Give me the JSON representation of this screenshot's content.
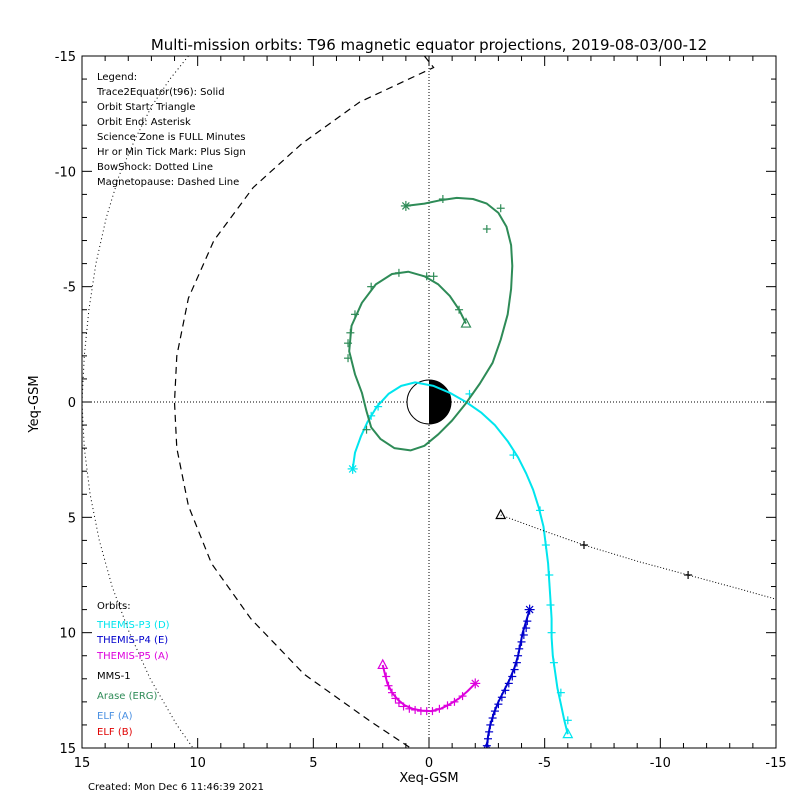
{
  "chart_data": {
    "type": "line",
    "title": "Multi-mission orbits: T96 magnetic equator projections, 2019-08-03/00-12",
    "xlabel": "Xeq-GSM",
    "ylabel": "Yeq-GSM",
    "xlim": [
      15,
      -15
    ],
    "ylim": [
      -15,
      15
    ],
    "x_ticks": [
      15,
      10,
      5,
      0,
      -5,
      -10,
      -15
    ],
    "y_ticks": [
      -15,
      -10,
      -5,
      0,
      5,
      10,
      15
    ],
    "grid": false,
    "crosshair_lines": "dotted at x=0 and y=0",
    "legend_lines": [
      "Legend:",
      "Trace2Equator(t96): Solid",
      "Orbit Start: Triangle",
      "Orbit End: Asterisk",
      "Science Zone is FULL Minutes",
      "Hr or Min Tick Mark: Plus Sign",
      "BowShock: Dotted Line",
      "Magnetopause: Dashed Line"
    ],
    "orbits_title": "Orbits:",
    "series": [
      {
        "name": "THEMIS-P3 (D)",
        "color": "#00e5ee",
        "start_marker": [
          -6.0,
          14.4
        ],
        "end_marker": [
          3.3,
          2.9
        ],
        "points": [
          [
            -6.0,
            14.4
          ],
          [
            -5.85,
            13.8
          ],
          [
            -5.7,
            13.1
          ],
          [
            -5.55,
            12.4
          ],
          [
            -5.45,
            11.7
          ],
          [
            -5.35,
            11.0
          ],
          [
            -5.3,
            10.2
          ],
          [
            -5.3,
            9.4
          ],
          [
            -5.25,
            8.6
          ],
          [
            -5.2,
            7.8
          ],
          [
            -5.15,
            7.0
          ],
          [
            -5.05,
            6.2
          ],
          [
            -4.95,
            5.4
          ],
          [
            -4.75,
            4.6
          ],
          [
            -4.5,
            3.8
          ],
          [
            -4.2,
            3.1
          ],
          [
            -3.85,
            2.4
          ],
          [
            -3.4,
            1.7
          ],
          [
            -2.85,
            1.0
          ],
          [
            -2.25,
            0.45
          ],
          [
            -1.6,
            0.0
          ],
          [
            -0.9,
            -0.4
          ],
          [
            -0.2,
            -0.7
          ],
          [
            0.6,
            -0.85
          ],
          [
            1.2,
            -0.7
          ],
          [
            1.75,
            -0.35
          ],
          [
            2.25,
            0.2
          ],
          [
            2.65,
            0.85
          ],
          [
            2.95,
            1.5
          ],
          [
            3.2,
            2.2
          ],
          [
            3.3,
            2.9
          ]
        ],
        "ticks": [
          [
            -6.0,
            13.8
          ],
          [
            -5.7,
            12.6
          ],
          [
            -5.4,
            11.3
          ],
          [
            -5.3,
            10.0
          ],
          [
            -5.25,
            8.8
          ],
          [
            -5.2,
            7.5
          ],
          [
            -5.05,
            6.2
          ],
          [
            -4.8,
            4.7
          ],
          [
            -3.65,
            2.3
          ],
          [
            -1.75,
            -0.35
          ],
          [
            2.2,
            0.2
          ],
          [
            2.5,
            0.6
          ]
        ]
      },
      {
        "name": "THEMIS-P4 (E)",
        "color": "#0000cc",
        "start_marker": [
          -2.5,
          15.0
        ],
        "end_marker": [
          -4.35,
          9.0
        ],
        "points": [
          [
            -2.5,
            15.0
          ],
          [
            -2.55,
            14.5
          ],
          [
            -2.65,
            14.0
          ],
          [
            -2.8,
            13.5
          ],
          [
            -3.0,
            13.0
          ],
          [
            -3.25,
            12.5
          ],
          [
            -3.5,
            12.0
          ],
          [
            -3.7,
            11.5
          ],
          [
            -3.85,
            11.0
          ],
          [
            -3.95,
            10.5
          ],
          [
            -4.05,
            10.0
          ],
          [
            -4.2,
            9.5
          ],
          [
            -4.35,
            9.0
          ]
        ],
        "ticks": [
          [
            -2.5,
            14.9
          ],
          [
            -2.55,
            14.6
          ],
          [
            -2.6,
            14.3
          ],
          [
            -2.65,
            14.0
          ],
          [
            -2.75,
            13.7
          ],
          [
            -2.85,
            13.4
          ],
          [
            -3.0,
            13.1
          ],
          [
            -3.15,
            12.8
          ],
          [
            -3.3,
            12.5
          ],
          [
            -3.45,
            12.2
          ],
          [
            -3.6,
            11.9
          ],
          [
            -3.7,
            11.6
          ],
          [
            -3.8,
            11.3
          ],
          [
            -3.85,
            11.0
          ],
          [
            -3.9,
            10.7
          ],
          [
            -4.0,
            10.4
          ],
          [
            -4.1,
            10.1
          ],
          [
            -4.2,
            9.8
          ],
          [
            -4.25,
            9.5
          ]
        ]
      },
      {
        "name": "THEMIS-P5 (A)",
        "color": "#dd00dd",
        "start_marker": [
          2.0,
          11.4
        ],
        "end_marker": [
          -2.0,
          12.2
        ],
        "points": [
          [
            2.0,
            11.4
          ],
          [
            1.9,
            11.8
          ],
          [
            1.8,
            12.2
          ],
          [
            1.6,
            12.6
          ],
          [
            1.35,
            12.9
          ],
          [
            1.05,
            13.15
          ],
          [
            0.7,
            13.3
          ],
          [
            0.3,
            13.38
          ],
          [
            -0.1,
            13.4
          ],
          [
            -0.5,
            13.3
          ],
          [
            -0.9,
            13.1
          ],
          [
            -1.3,
            12.85
          ],
          [
            -1.65,
            12.55
          ],
          [
            -2.0,
            12.2
          ]
        ],
        "ticks": [
          [
            1.85,
            11.9
          ],
          [
            1.75,
            12.3
          ],
          [
            1.6,
            12.6
          ],
          [
            1.45,
            12.85
          ],
          [
            1.3,
            13.05
          ],
          [
            1.1,
            13.2
          ],
          [
            0.85,
            13.3
          ],
          [
            0.6,
            13.35
          ],
          [
            0.35,
            13.4
          ],
          [
            0.1,
            13.4
          ],
          [
            -0.15,
            13.4
          ],
          [
            -0.45,
            13.3
          ],
          [
            -0.8,
            13.15
          ],
          [
            -1.1,
            13.0
          ],
          [
            -1.45,
            12.75
          ]
        ]
      },
      {
        "name": "MMS-1",
        "color": "#000000",
        "start_marker": [
          -3.1,
          4.9
        ],
        "end_marker": [
          -15.5,
          8.7
        ],
        "points": [
          [
            -3.1,
            4.9
          ],
          [
            -5.0,
            5.6
          ],
          [
            -6.7,
            6.2
          ],
          [
            -9.0,
            6.9
          ],
          [
            -11.2,
            7.5
          ],
          [
            -13.4,
            8.1
          ],
          [
            -15.0,
            8.55
          ]
        ],
        "ticks": [
          [
            -6.7,
            6.2
          ],
          [
            -11.2,
            7.5
          ]
        ]
      },
      {
        "name": "Arase (ERG)",
        "color": "#2e8b57",
        "start_marker": [
          -1.6,
          -3.4
        ],
        "end_marker": [
          1.0,
          -8.5
        ],
        "points": [
          [
            -1.6,
            -3.4
          ],
          [
            -1.3,
            -4.0
          ],
          [
            -0.9,
            -4.6
          ],
          [
            -0.4,
            -5.1
          ],
          [
            0.2,
            -5.45
          ],
          [
            0.9,
            -5.65
          ],
          [
            1.6,
            -5.55
          ],
          [
            2.3,
            -5.1
          ],
          [
            2.9,
            -4.3
          ],
          [
            3.35,
            -3.3
          ],
          [
            3.45,
            -2.2
          ],
          [
            3.2,
            -1.2
          ],
          [
            2.9,
            -0.4
          ],
          [
            2.7,
            0.4
          ],
          [
            2.5,
            1.1
          ],
          [
            2.1,
            1.6
          ],
          [
            1.5,
            2.0
          ],
          [
            0.8,
            2.1
          ],
          [
            0.2,
            1.9
          ],
          [
            -0.4,
            1.4
          ],
          [
            -1.0,
            0.8
          ],
          [
            -1.6,
            0.05
          ],
          [
            -2.2,
            -0.8
          ],
          [
            -2.75,
            -1.7
          ],
          [
            -3.1,
            -2.7
          ],
          [
            -3.4,
            -3.8
          ],
          [
            -3.55,
            -4.9
          ],
          [
            -3.6,
            -5.9
          ],
          [
            -3.55,
            -6.8
          ],
          [
            -3.35,
            -7.6
          ],
          [
            -3.0,
            -8.2
          ],
          [
            -2.5,
            -8.6
          ],
          [
            -1.9,
            -8.8
          ],
          [
            -1.2,
            -8.85
          ],
          [
            -0.5,
            -8.75
          ],
          [
            0.2,
            -8.6
          ],
          [
            1.0,
            -8.5
          ]
        ],
        "ticks": [
          [
            -1.3,
            -4.0
          ],
          [
            0.1,
            -5.45
          ],
          [
            1.3,
            -5.6
          ],
          [
            2.5,
            -5.0
          ],
          [
            3.2,
            -3.8
          ],
          [
            3.4,
            -3.0
          ],
          [
            3.5,
            -2.55
          ],
          [
            3.5,
            -1.9
          ],
          [
            2.7,
            1.2
          ],
          [
            -0.2,
            -5.45
          ],
          [
            -2.5,
            -7.5
          ],
          [
            -3.1,
            -8.4
          ],
          [
            -0.6,
            -8.8
          ]
        ]
      },
      {
        "name": "ELF (A)",
        "color": "#4a90e2"
      },
      {
        "name": "ELF (B)",
        "color": "#e00000"
      }
    ],
    "bow_shock": [
      [
        10.4,
        -15.0
      ],
      [
        11.2,
        -14.0
      ],
      [
        12.0,
        -12.8
      ],
      [
        12.7,
        -11.4
      ],
      [
        13.4,
        -9.8
      ],
      [
        13.95,
        -8.0
      ],
      [
        14.4,
        -6.0
      ],
      [
        14.7,
        -4.0
      ],
      [
        14.9,
        -2.0
      ],
      [
        15.0,
        0.0
      ],
      [
        14.9,
        2.0
      ],
      [
        14.65,
        4.0
      ],
      [
        14.25,
        6.0
      ],
      [
        13.7,
        8.0
      ],
      [
        12.95,
        10.0
      ],
      [
        12.05,
        12.0
      ],
      [
        10.9,
        14.0
      ],
      [
        10.2,
        15.0
      ]
    ],
    "magnetopause": [
      [
        0.2,
        -15.0
      ],
      [
        -0.2,
        -14.5
      ],
      [
        3.0,
        -13.0
      ],
      [
        5.5,
        -11.2
      ],
      [
        7.6,
        -9.3
      ],
      [
        9.3,
        -7.0
      ],
      [
        10.4,
        -4.5
      ],
      [
        10.9,
        -2.0
      ],
      [
        11.0,
        0.0
      ],
      [
        10.9,
        2.0
      ],
      [
        10.4,
        4.5
      ],
      [
        9.4,
        7.0
      ],
      [
        7.7,
        9.4
      ],
      [
        5.4,
        11.8
      ],
      [
        2.6,
        13.8
      ],
      [
        0.8,
        15.0
      ]
    ]
  },
  "footer": {
    "created": "Created: Mon Dec  6 11:46:39 2021"
  }
}
